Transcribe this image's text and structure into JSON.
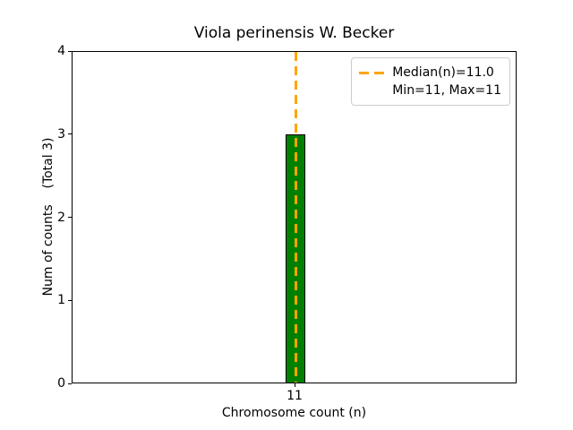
{
  "title": "Viola perinensis W. Becker",
  "x_axis": {
    "label": "Chromosome count (n)"
  },
  "y_axis": {
    "label": "Num of counts    (Total 3)"
  },
  "legend": {
    "median_label": "Median(n)=11.0",
    "minmax_label": "Min=11, Max=11"
  },
  "colors": {
    "bar_fill": "#008000",
    "bar_edge": "#000000",
    "median_line": "#FFA500",
    "legend_border": "#cccccc",
    "axes_edge": "#000000",
    "text": "#000000"
  },
  "chart_data": {
    "type": "bar",
    "title": "Viola perinensis W. Becker",
    "categories": [
      "11"
    ],
    "values": [
      3
    ],
    "xlabel": "Chromosome count (n)",
    "ylabel": "Num of counts (Total 3)",
    "ylim": [
      0,
      4
    ],
    "yticks": [
      0,
      1,
      2,
      3,
      4
    ],
    "total_counts": 3,
    "median_n": 11.0,
    "min_n": 11,
    "max_n": 11,
    "legend_entries": [
      "Median(n)=11.0",
      "Min=11, Max=11"
    ],
    "legend_position": "upper right",
    "grid": false,
    "bar_color": "#008000",
    "median_line_color": "#FFA500",
    "median_line_style": "dashed"
  }
}
